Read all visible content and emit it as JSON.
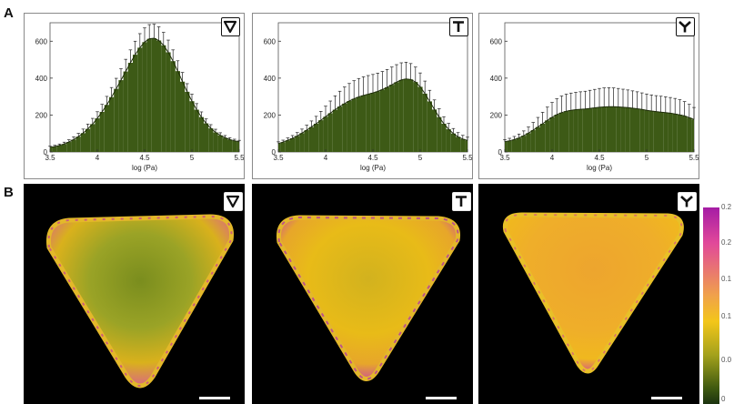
{
  "panel_labels": [
    "A",
    "B"
  ],
  "chart_data": [
    {
      "type": "bar",
      "icon": "triangle-down-icon",
      "xlabel": "log (Pa)",
      "xlim": [
        3.5,
        5.5
      ],
      "ylim": [
        0,
        700
      ],
      "xticks": [
        "3.5",
        "4",
        "4.5",
        "5",
        "5.5"
      ],
      "yticks": [
        "0",
        "200",
        "400",
        "600"
      ],
      "bar_color": "#3d5a16",
      "x": [
        3.5,
        3.55,
        3.6,
        3.65,
        3.7,
        3.75,
        3.8,
        3.85,
        3.9,
        3.95,
        4.0,
        4.05,
        4.1,
        4.15,
        4.2,
        4.25,
        4.3,
        4.35,
        4.4,
        4.45,
        4.5,
        4.55,
        4.6,
        4.65,
        4.7,
        4.75,
        4.8,
        4.85,
        4.9,
        4.95,
        5.0,
        5.05,
        5.1,
        5.15,
        5.2,
        5.25,
        5.3,
        5.35,
        5.4,
        5.45,
        5.5
      ],
      "values": [
        25,
        29,
        35,
        43,
        54,
        67,
        83,
        102,
        125,
        151,
        182,
        217,
        255,
        297,
        342,
        389,
        436,
        483,
        527,
        565,
        595,
        613,
        616,
        604,
        578,
        540,
        492,
        438,
        381,
        326,
        275,
        229,
        189,
        155,
        128,
        106,
        90,
        77,
        67,
        60,
        55
      ],
      "errors": [
        6,
        7,
        8,
        10,
        12,
        15,
        18,
        22,
        26,
        31,
        36,
        41,
        46,
        52,
        57,
        62,
        66,
        70,
        73,
        76,
        77,
        77,
        76,
        74,
        70,
        66,
        61,
        56,
        50,
        44,
        38,
        33,
        28,
        24,
        20,
        17,
        14,
        12,
        10,
        9,
        8
      ]
    },
    {
      "type": "bar",
      "icon": "t-shape-icon",
      "xlabel": "log (Pa)",
      "xlim": [
        3.5,
        5.5
      ],
      "ylim": [
        0,
        700
      ],
      "xticks": [
        "3.5",
        "4",
        "4.5",
        "5",
        "5.5"
      ],
      "yticks": [
        "0",
        "200",
        "400",
        "600"
      ],
      "bar_color": "#3d5a16",
      "x": [
        3.5,
        3.55,
        3.6,
        3.65,
        3.7,
        3.75,
        3.8,
        3.85,
        3.9,
        3.95,
        4.0,
        4.05,
        4.1,
        4.15,
        4.2,
        4.25,
        4.3,
        4.35,
        4.4,
        4.45,
        4.5,
        4.55,
        4.6,
        4.65,
        4.7,
        4.75,
        4.8,
        4.85,
        4.9,
        4.95,
        5.0,
        5.05,
        5.1,
        5.15,
        5.2,
        5.25,
        5.3,
        5.35,
        5.4,
        5.45,
        5.5
      ],
      "values": [
        45,
        53,
        63,
        74,
        87,
        102,
        118,
        135,
        153,
        172,
        191,
        210,
        229,
        246,
        262,
        276,
        288,
        298,
        306,
        313,
        320,
        328,
        338,
        350,
        364,
        378,
        390,
        396,
        393,
        379,
        353,
        316,
        274,
        230,
        189,
        153,
        123,
        100,
        82,
        70,
        62
      ],
      "errors": [
        10,
        11,
        13,
        15,
        18,
        22,
        27,
        33,
        40,
        48,
        57,
        66,
        75,
        83,
        90,
        95,
        98,
        100,
        101,
        101,
        100,
        99,
        98,
        97,
        96,
        95,
        93,
        90,
        86,
        81,
        75,
        68,
        60,
        52,
        45,
        38,
        32,
        27,
        23,
        20,
        18
      ]
    },
    {
      "type": "bar",
      "icon": "y-shape-icon",
      "xlabel": "log (Pa)",
      "xlim": [
        3.5,
        5.5
      ],
      "ylim": [
        0,
        700
      ],
      "xticks": [
        "3.5",
        "4",
        "4.5",
        "5",
        "5.5"
      ],
      "yticks": [
        "0",
        "200",
        "400",
        "600"
      ],
      "bar_color": "#3d5a16",
      "x": [
        3.5,
        3.55,
        3.6,
        3.65,
        3.7,
        3.75,
        3.8,
        3.85,
        3.9,
        3.95,
        4.0,
        4.05,
        4.1,
        4.15,
        4.2,
        4.25,
        4.3,
        4.35,
        4.4,
        4.45,
        4.5,
        4.55,
        4.6,
        4.65,
        4.7,
        4.75,
        4.8,
        4.85,
        4.9,
        4.95,
        5.0,
        5.05,
        5.1,
        5.15,
        5.2,
        5.25,
        5.3,
        5.35,
        5.4,
        5.45,
        5.5
      ],
      "values": [
        55,
        60,
        67,
        76,
        88,
        102,
        118,
        135,
        153,
        171,
        188,
        202,
        213,
        221,
        226,
        229,
        231,
        233,
        236,
        239,
        242,
        244,
        245,
        245,
        244,
        242,
        240,
        237,
        234,
        230,
        226,
        222,
        219,
        216,
        213,
        210,
        206,
        201,
        195,
        186,
        176
      ],
      "errors": [
        12,
        14,
        17,
        21,
        26,
        33,
        42,
        52,
        62,
        72,
        80,
        86,
        90,
        92,
        93,
        94,
        95,
        96,
        98,
        100,
        102,
        103,
        103,
        102,
        100,
        98,
        96,
        94,
        92,
        90,
        88,
        87,
        86,
        86,
        86,
        85,
        84,
        82,
        78,
        72,
        65
      ]
    }
  ],
  "image_panels": [
    {
      "icon": "triangle-down-icon"
    },
    {
      "icon": "t-shape-icon"
    },
    {
      "icon": "y-shape-icon"
    }
  ],
  "colorbar": {
    "colors": [
      "#a51ca5",
      "#e1489a",
      "#f0a24a",
      "#f3c61a",
      "#a4a21c",
      "#3f5a10",
      "#1c3310"
    ],
    "tick_labels": [
      "0.2",
      "0.2",
      "0.1",
      "0.1",
      "0.0",
      "0"
    ]
  }
}
